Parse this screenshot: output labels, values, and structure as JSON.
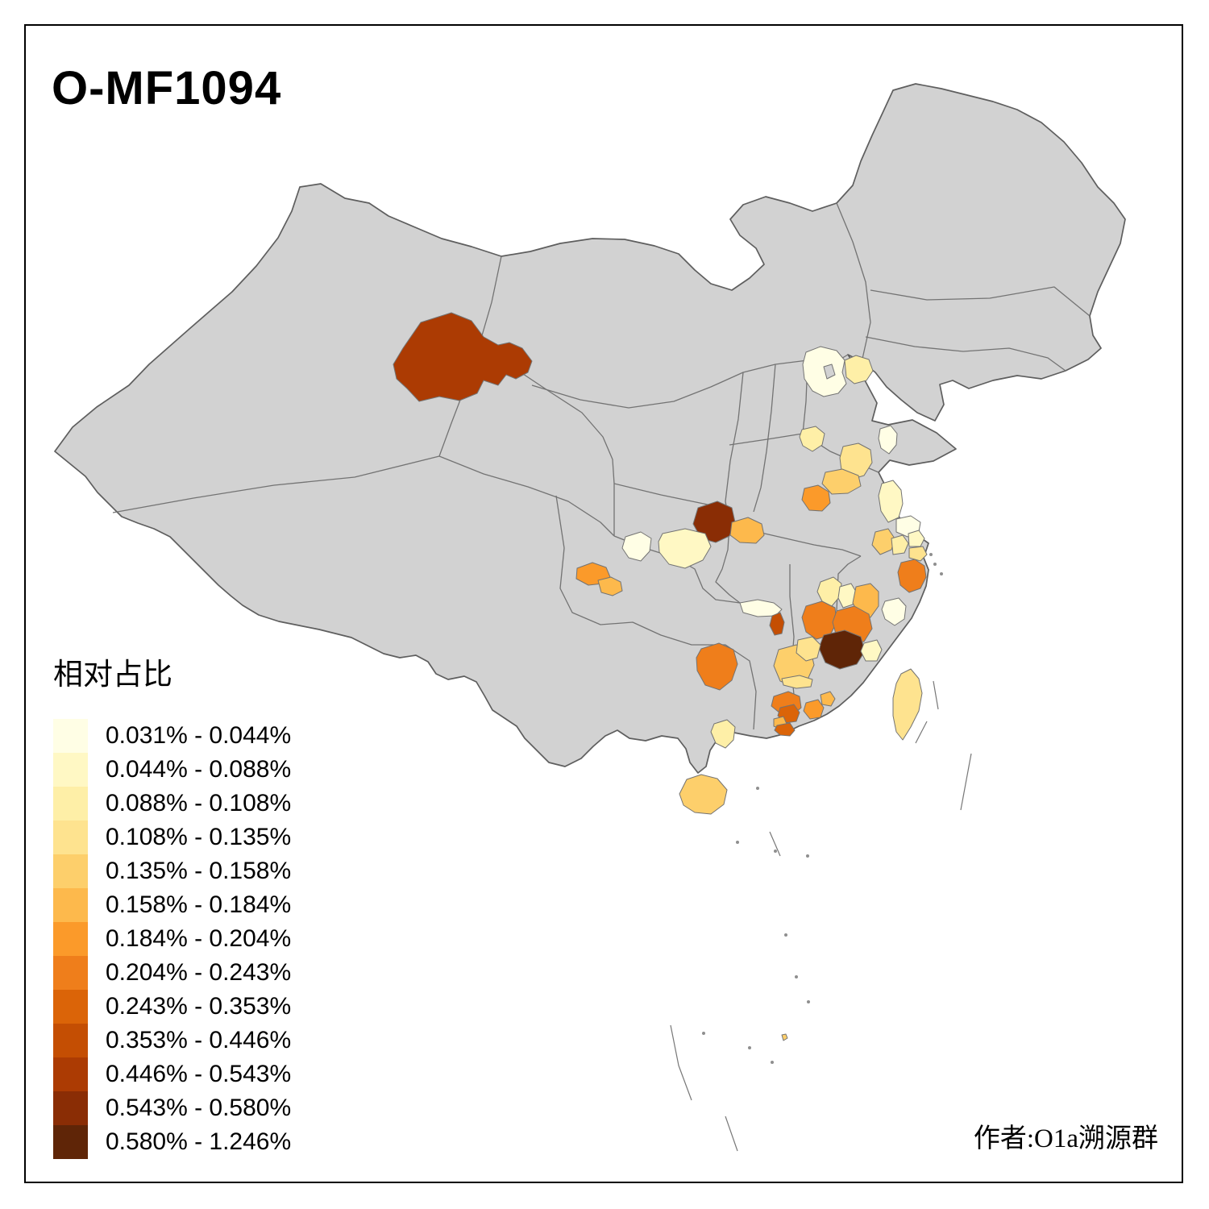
{
  "title": "O-MF1094",
  "attribution": "作者:O1a溯源群",
  "legend": {
    "title": "相对占比",
    "classes": [
      {
        "label": "0.031% - 0.044%",
        "color": "#FFFEE5"
      },
      {
        "label": "0.044% - 0.088%",
        "color": "#FFF8C4"
      },
      {
        "label": "0.088% - 0.108%",
        "color": "#FEEFA7"
      },
      {
        "label": "0.108% - 0.135%",
        "color": "#FEE38F"
      },
      {
        "label": "0.135% - 0.158%",
        "color": "#FDCF6B"
      },
      {
        "label": "0.158% - 0.184%",
        "color": "#FDB94C"
      },
      {
        "label": "0.184% - 0.204%",
        "color": "#FB9A2A"
      },
      {
        "label": "0.204% - 0.243%",
        "color": "#EF7E1B"
      },
      {
        "label": "0.243% - 0.353%",
        "color": "#DB6408"
      },
      {
        "label": "0.353% - 0.446%",
        "color": "#C44E03"
      },
      {
        "label": "0.446% - 0.543%",
        "color": "#AC3B03"
      },
      {
        "label": "0.543% - 0.580%",
        "color": "#8A2D05"
      },
      {
        "label": "0.580% - 1.246%",
        "color": "#5F2507"
      }
    ]
  },
  "map": {
    "base_color": "#D2D2D2",
    "border_color": "#737373",
    "sea_color": "#FFFFFF",
    "regions": [
      {
        "id": "r01",
        "legend_class": 11
      },
      {
        "id": "r02",
        "legend_class": 1
      },
      {
        "id": "r03",
        "legend_class": 3
      },
      {
        "id": "r04",
        "legend_class": 1
      },
      {
        "id": "r05",
        "legend_class": 3
      },
      {
        "id": "r06",
        "legend_class": 4
      },
      {
        "id": "r07",
        "legend_class": 5
      },
      {
        "id": "r08",
        "legend_class": 7
      },
      {
        "id": "r09",
        "legend_class": 2
      },
      {
        "id": "r10",
        "legend_class": 1
      },
      {
        "id": "r11",
        "legend_class": 5
      },
      {
        "id": "r12",
        "legend_class": 3
      },
      {
        "id": "r13",
        "legend_class": 2
      },
      {
        "id": "r14",
        "legend_class": 4
      },
      {
        "id": "r15",
        "legend_class": 8
      },
      {
        "id": "r16",
        "legend_class": 12
      },
      {
        "id": "r17",
        "legend_class": 6
      },
      {
        "id": "r18",
        "legend_class": 2
      },
      {
        "id": "r19",
        "legend_class": 1
      },
      {
        "id": "r20",
        "legend_class": 7
      },
      {
        "id": "r21",
        "legend_class": 6
      },
      {
        "id": "r22",
        "legend_class": 1
      },
      {
        "id": "r23",
        "legend_class": 10
      },
      {
        "id": "r24",
        "legend_class": 8
      },
      {
        "id": "r25",
        "legend_class": 5
      },
      {
        "id": "r26",
        "legend_class": 8
      },
      {
        "id": "r27",
        "legend_class": 3
      },
      {
        "id": "r28",
        "legend_class": 2
      },
      {
        "id": "r29",
        "legend_class": 6
      },
      {
        "id": "r30",
        "legend_class": 8
      },
      {
        "id": "r31",
        "legend_class": 1
      },
      {
        "id": "r32",
        "legend_class": 13
      },
      {
        "id": "r33",
        "legend_class": 4
      },
      {
        "id": "r34",
        "legend_class": 2
      },
      {
        "id": "r35",
        "legend_class": 8
      },
      {
        "id": "r36",
        "legend_class": 9
      },
      {
        "id": "r37",
        "legend_class": 6
      },
      {
        "id": "r38",
        "legend_class": 9
      },
      {
        "id": "r39",
        "legend_class": 7
      },
      {
        "id": "r40",
        "legend_class": 6
      },
      {
        "id": "r41",
        "legend_class": 4
      },
      {
        "id": "r42",
        "legend_class": 3
      },
      {
        "id": "r43",
        "legend_class": 5
      },
      {
        "id": "r44",
        "legend_class": 4
      },
      {
        "id": "r45",
        "legend_class": 5
      }
    ]
  }
}
